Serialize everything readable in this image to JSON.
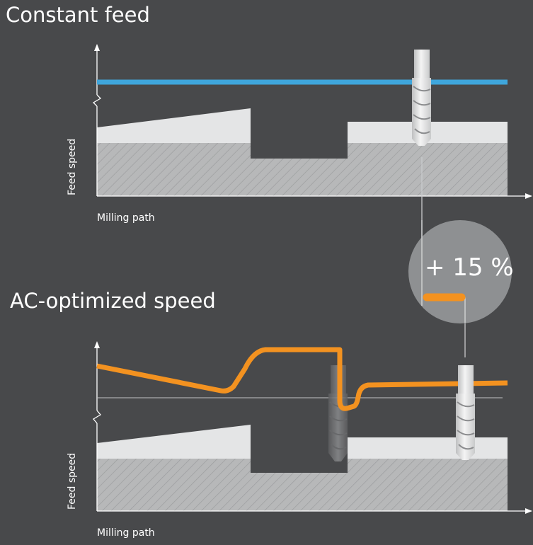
{
  "panels": {
    "top": {
      "title": "Constant feed",
      "y_axis_label": "Feed speed",
      "x_axis_label": "Milling path",
      "feed_line_color": "#3fa6dc"
    },
    "bottom": {
      "title": "AC-optimized speed",
      "y_axis_label": "Feed speed",
      "x_axis_label": "Milling path",
      "feed_line_color": "#f39220"
    }
  },
  "badge": {
    "label": "+ 15 %",
    "marker_color": "#f39220"
  },
  "colors": {
    "background": "#48494b",
    "material_block": "#b8b9ba",
    "material_top_layer": "#e4e5e6",
    "tool": "#e8e9ea",
    "badge_circle": "#8e9092"
  },
  "icons": {
    "tool": "end-mill-cutter-icon",
    "axis_break": "zigzag-break-icon"
  }
}
